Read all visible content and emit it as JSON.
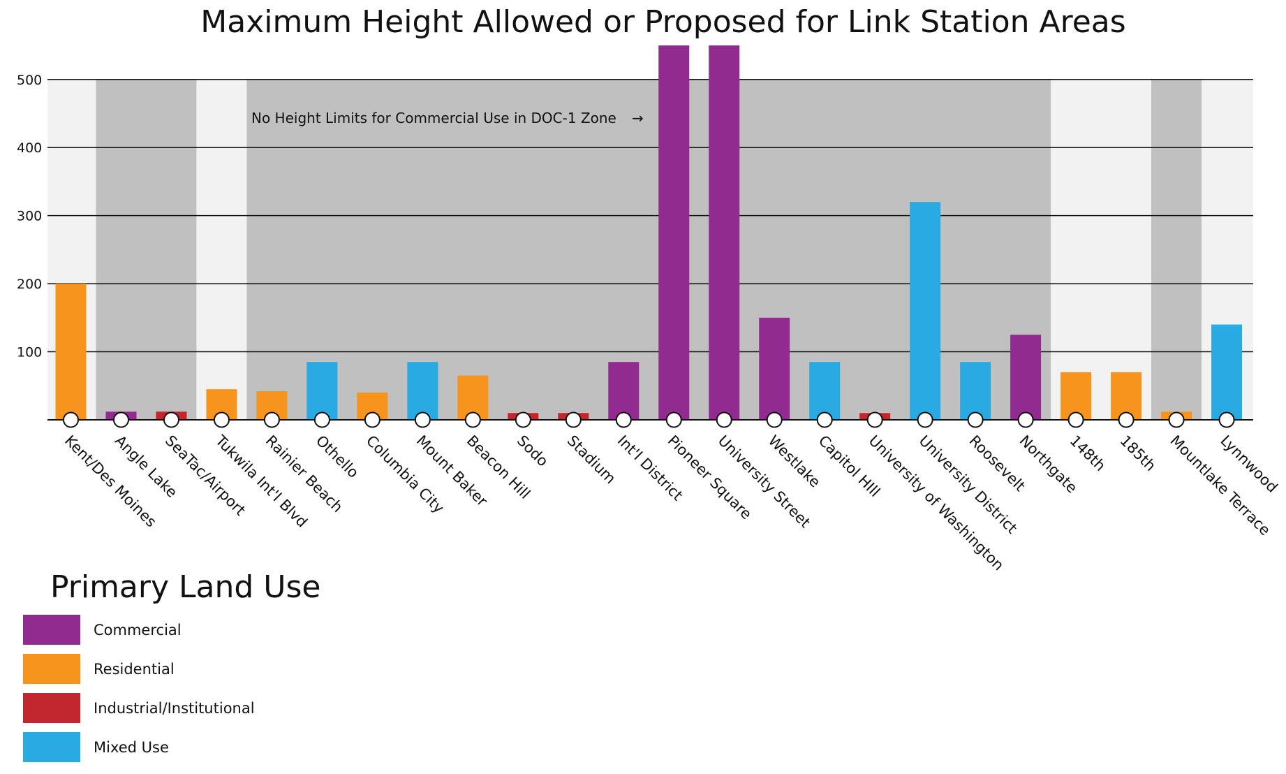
{
  "chart_data": {
    "type": "bar",
    "title": "Maximum Height Allowed or Proposed for Link Station Areas",
    "xlabel": "",
    "ylabel": "",
    "ylim": [
      0,
      550
    ],
    "yticks": [
      100,
      200,
      300,
      400,
      500
    ],
    "grid": true,
    "annotation": {
      "text": "No Height Limits for Commercial Use in DOC-1 Zone",
      "arrow": "→"
    },
    "categories": [
      "Kent/Des Moines",
      "Angle Lake",
      "SeaTac/Airport",
      "Tukwila Int'l Blvd",
      "Rainier Beach",
      "Othello",
      "Columbia City",
      "Mount Baker",
      "Beacon Hill",
      "Sodo",
      "Stadium",
      "Int'l District",
      "Pioneer Square",
      "University Street",
      "Westlake",
      "Capitol HIll",
      "University of Washington",
      "University District",
      "Roosevelt",
      "Northgate",
      "148th",
      "185th",
      "Mountlake Terrace",
      "Lynnwood"
    ],
    "values": [
      200,
      12,
      12,
      45,
      42,
      85,
      40,
      85,
      65,
      10,
      10,
      85,
      550,
      550,
      150,
      85,
      10,
      320,
      85,
      125,
      70,
      70,
      12,
      140
    ],
    "land_use": [
      "Residential",
      "Commercial",
      "Industrial/Institutional",
      "Residential",
      "Residential",
      "Mixed Use",
      "Residential",
      "Mixed Use",
      "Residential",
      "Industrial/Institutional",
      "Industrial/Institutional",
      "Commercial",
      "Commercial",
      "Commercial",
      "Commercial",
      "Mixed Use",
      "Industrial/Institutional",
      "Mixed Use",
      "Mixed Use",
      "Commercial",
      "Residential",
      "Residential",
      "Residential",
      "Mixed Use"
    ],
    "background_bands": [
      {
        "from": "Kent/Des Moines",
        "to": "Kent/Des Moines",
        "shade": "light"
      },
      {
        "from": "Angle Lake",
        "to": "SeaTac/Airport",
        "shade": "dark"
      },
      {
        "from": "Tukwila Int'l Blvd",
        "to": "Tukwila Int'l Blvd",
        "shade": "light"
      },
      {
        "from": "Rainier Beach",
        "to": "Northgate",
        "shade": "dark"
      },
      {
        "from": "148th",
        "to": "185th",
        "shade": "light"
      },
      {
        "from": "Mountlake Terrace",
        "to": "Mountlake Terrace",
        "shade": "dark"
      },
      {
        "from": "Lynnwood",
        "to": "Lynnwood",
        "shade": "light"
      }
    ],
    "legend": {
      "title": "Primary Land Use",
      "placement": "bottom-left",
      "items": [
        {
          "label": "Commercial",
          "color": "#922b8f"
        },
        {
          "label": "Residential",
          "color": "#f7941d"
        },
        {
          "label": "Industrial/Institutional",
          "color": "#c1272d"
        },
        {
          "label": "Mixed Use",
          "color": "#29abe2"
        }
      ]
    },
    "colors": {
      "band_light": "#f2f2f2",
      "band_dark": "#c0c0c0",
      "axis": "#111111",
      "marker_fill": "#ffffff"
    }
  }
}
